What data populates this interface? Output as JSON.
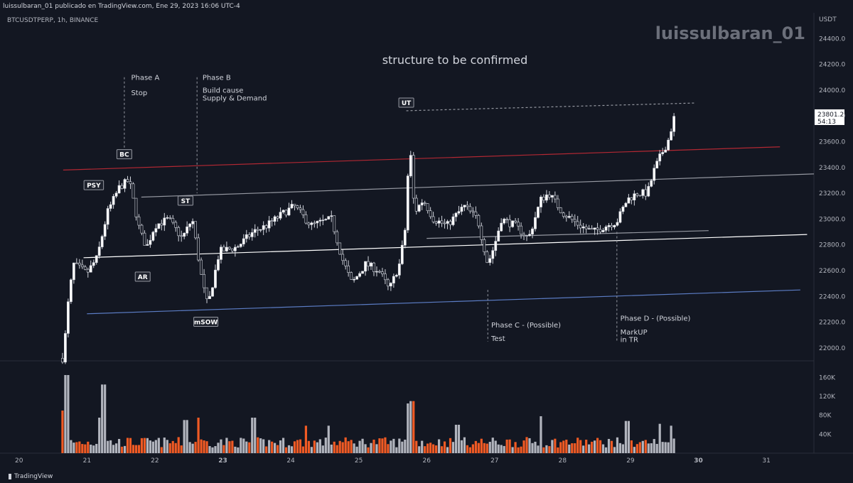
{
  "header": {
    "publish_line": "luissulbaran_01 publicado en TradingView.com, Ene 29, 2023 16:06 UTC-4",
    "symbol_line": "BTCUSDTPERP, 1h, BINANCE",
    "watermark": "luissulbaran_01",
    "currency": "USDT"
  },
  "footer": {
    "brand": "TradingView"
  },
  "chart_data": {
    "type": "candlestick",
    "title": "structure to be confirmed",
    "price_axis": {
      "min": 21900,
      "max": 24600,
      "ticks": [
        22000,
        22200,
        22400,
        22600,
        22800,
        23000,
        23200,
        23400,
        23600,
        23800,
        24000,
        24200,
        24400
      ],
      "labels": [
        "22000.0",
        "22200.0",
        "22400.0",
        "22600.0",
        "22800.0",
        "23000.0",
        "23200.0",
        "23400.0",
        "23600.0",
        "23800.0",
        "24000.0",
        "24200.0",
        "24400.0"
      ]
    },
    "volume_axis": {
      "max": 180000,
      "ticks": [
        40000,
        80000,
        120000,
        160000
      ],
      "labels": [
        "40K",
        "80K",
        "120K",
        "160K"
      ]
    },
    "time_axis": {
      "start_day": 19.72,
      "end_day": 31.7,
      "ticks": [
        20,
        21,
        22,
        23,
        24,
        25,
        26,
        27,
        28,
        29,
        30,
        31
      ],
      "labels": [
        "20",
        "21",
        "22",
        "23",
        "24",
        "25",
        "26",
        "27",
        "28",
        "29",
        "30",
        "31"
      ],
      "bold": [
        "23",
        "30"
      ]
    },
    "current_price": {
      "value": "23801.2",
      "countdown": "54:13"
    },
    "key_points": [
      {
        "d": 20.66,
        "p": 21920
      },
      {
        "d": 20.7,
        "p": 22250
      },
      {
        "d": 20.8,
        "p": 22650
      },
      {
        "d": 21.0,
        "p": 22580
      },
      {
        "d": 21.15,
        "p": 22700
      },
      {
        "d": 21.3,
        "p": 23050
      },
      {
        "d": 21.48,
        "p": 23250
      },
      {
        "d": 21.62,
        "p": 23300
      },
      {
        "d": 21.78,
        "p": 22900
      },
      {
        "d": 21.88,
        "p": 22780
      },
      {
        "d": 22.0,
        "p": 22950
      },
      {
        "d": 22.2,
        "p": 23000
      },
      {
        "d": 22.4,
        "p": 22850
      },
      {
        "d": 22.55,
        "p": 23000
      },
      {
        "d": 22.7,
        "p": 22500
      },
      {
        "d": 22.78,
        "p": 22320
      },
      {
        "d": 22.95,
        "p": 22750
      },
      {
        "d": 23.2,
        "p": 22780
      },
      {
        "d": 23.45,
        "p": 22900
      },
      {
        "d": 23.65,
        "p": 22950
      },
      {
        "d": 23.9,
        "p": 23050
      },
      {
        "d": 24.05,
        "p": 23100
      },
      {
        "d": 24.3,
        "p": 22950
      },
      {
        "d": 24.6,
        "p": 23000
      },
      {
        "d": 24.75,
        "p": 22700
      },
      {
        "d": 24.9,
        "p": 22500
      },
      {
        "d": 25.1,
        "p": 22650
      },
      {
        "d": 25.3,
        "p": 22600
      },
      {
        "d": 25.45,
        "p": 22450
      },
      {
        "d": 25.6,
        "p": 22650
      },
      {
        "d": 25.68,
        "p": 22900
      },
      {
        "d": 25.75,
        "p": 23600
      },
      {
        "d": 25.82,
        "p": 23050
      },
      {
        "d": 25.95,
        "p": 23150
      },
      {
        "d": 26.1,
        "p": 23000
      },
      {
        "d": 26.3,
        "p": 22950
      },
      {
        "d": 26.55,
        "p": 23100
      },
      {
        "d": 26.75,
        "p": 23000
      },
      {
        "d": 26.9,
        "p": 22650
      },
      {
        "d": 27.0,
        "p": 22800
      },
      {
        "d": 27.1,
        "p": 23000
      },
      {
        "d": 27.3,
        "p": 22950
      },
      {
        "d": 27.5,
        "p": 22850
      },
      {
        "d": 27.68,
        "p": 23150
      },
      {
        "d": 27.8,
        "p": 23200
      },
      {
        "d": 28.0,
        "p": 23050
      },
      {
        "d": 28.25,
        "p": 22950
      },
      {
        "d": 28.45,
        "p": 22900
      },
      {
        "d": 28.65,
        "p": 22950
      },
      {
        "d": 28.8,
        "p": 22980
      },
      {
        "d": 28.95,
        "p": 23150
      },
      {
        "d": 29.1,
        "p": 23200
      },
      {
        "d": 29.25,
        "p": 23200
      },
      {
        "d": 29.35,
        "p": 23380
      },
      {
        "d": 29.45,
        "p": 23500
      },
      {
        "d": 29.55,
        "p": 23600
      },
      {
        "d": 29.65,
        "p": 23801
      }
    ],
    "volume_spikes": [
      {
        "d": 20.7,
        "v": 165000
      },
      {
        "d": 20.62,
        "v": 90000
      },
      {
        "d": 21.25,
        "v": 145000
      },
      {
        "d": 21.2,
        "v": 75000
      },
      {
        "d": 22.45,
        "v": 70000
      },
      {
        "d": 22.65,
        "v": 75000
      },
      {
        "d": 23.45,
        "v": 75000
      },
      {
        "d": 24.22,
        "v": 58000
      },
      {
        "d": 24.55,
        "v": 58000
      },
      {
        "d": 25.72,
        "v": 105000
      },
      {
        "d": 25.78,
        "v": 110000
      },
      {
        "d": 26.45,
        "v": 60000
      },
      {
        "d": 27.68,
        "v": 78000
      },
      {
        "d": 28.95,
        "v": 68000
      },
      {
        "d": 29.42,
        "v": 62000
      },
      {
        "d": 29.6,
        "v": 58000
      }
    ],
    "lines": [
      {
        "id": "red-line",
        "color": "#b22833",
        "from": {
          "d": 20.65,
          "p": 23380
        },
        "to": {
          "d": 31.2,
          "p": 23560
        }
      },
      {
        "id": "upper-range-line",
        "color": "#9598a1",
        "from": {
          "d": 21.8,
          "p": 23170
        },
        "to": {
          "d": 31.7,
          "p": 23350
        }
      },
      {
        "id": "mid-range-line",
        "color": "#ffffff",
        "from": {
          "d": 20.95,
          "p": 22700
        },
        "to": {
          "d": 31.6,
          "p": 22880
        }
      },
      {
        "id": "inner-range-line",
        "color": "#9598a1",
        "from": {
          "d": 26.0,
          "p": 22850
        },
        "to": {
          "d": 30.15,
          "p": 22910
        }
      },
      {
        "id": "blue-support-line",
        "color": "#5b7cc4",
        "from": {
          "d": 21.0,
          "p": 22265
        },
        "to": {
          "d": 31.5,
          "p": 22450
        }
      },
      {
        "id": "ut-dashed-line",
        "color": "#9598a1",
        "dashed": true,
        "from": {
          "d": 25.7,
          "p": 23840
        },
        "to": {
          "d": 29.95,
          "p": 23900
        }
      }
    ],
    "verticals": [
      {
        "id": "phase-a-vline",
        "d": 21.55,
        "p1": 24100,
        "p2": 23550
      },
      {
        "id": "phase-b-vline",
        "d": 22.62,
        "p1": 24100,
        "p2": 23200
      },
      {
        "id": "phase-c-vline",
        "d": 26.9,
        "p1": 22450,
        "p2": 22050
      },
      {
        "id": "phase-d-vline",
        "d": 28.8,
        "p1": 22900,
        "p2": 22050
      }
    ],
    "tags": [
      {
        "text": "PSY",
        "d": 21.1,
        "p": 23260
      },
      {
        "text": "BC",
        "d": 21.55,
        "p": 23500
      },
      {
        "text": "AR",
        "d": 21.82,
        "p": 22550
      },
      {
        "text": "ST",
        "d": 22.45,
        "p": 23140
      },
      {
        "text": "mSOW",
        "d": 22.75,
        "p": 22200
      },
      {
        "text": "UT",
        "d": 25.7,
        "p": 23900
      }
    ],
    "annotations": [
      {
        "id": "phase-a-label",
        "text": "Phase A",
        "d": 21.65,
        "p": 24080
      },
      {
        "id": "stop-label",
        "text": "Stop",
        "d": 21.65,
        "p": 23960
      },
      {
        "id": "phase-b-label",
        "text": "Phase B",
        "d": 22.7,
        "p": 24080
      },
      {
        "id": "build-cause-label",
        "text": "Build cause",
        "d": 22.7,
        "p": 23980
      },
      {
        "id": "supply-demand-label",
        "text": "Supply & Demand",
        "d": 22.7,
        "p": 23920
      },
      {
        "id": "phase-c-label",
        "text": "Phase C - (Possible)",
        "d": 26.95,
        "p": 22160
      },
      {
        "id": "test-label",
        "text": "Test",
        "d": 26.95,
        "p": 22055
      },
      {
        "id": "phase-d-label",
        "text": "Phase D - (Possible)",
        "d": 28.85,
        "p": 22210
      },
      {
        "id": "markup-label",
        "text": "MarkUP",
        "d": 28.85,
        "p": 22105
      },
      {
        "id": "in-tr-label",
        "text": "in TR",
        "d": 28.85,
        "p": 22045
      }
    ],
    "colors": {
      "up": "#ffffff",
      "down": "#ffffff",
      "vol_up": "#b2b5be",
      "vol_down": "#f05a24",
      "grid": "#1f2430",
      "axis_bg": "#131722"
    }
  }
}
